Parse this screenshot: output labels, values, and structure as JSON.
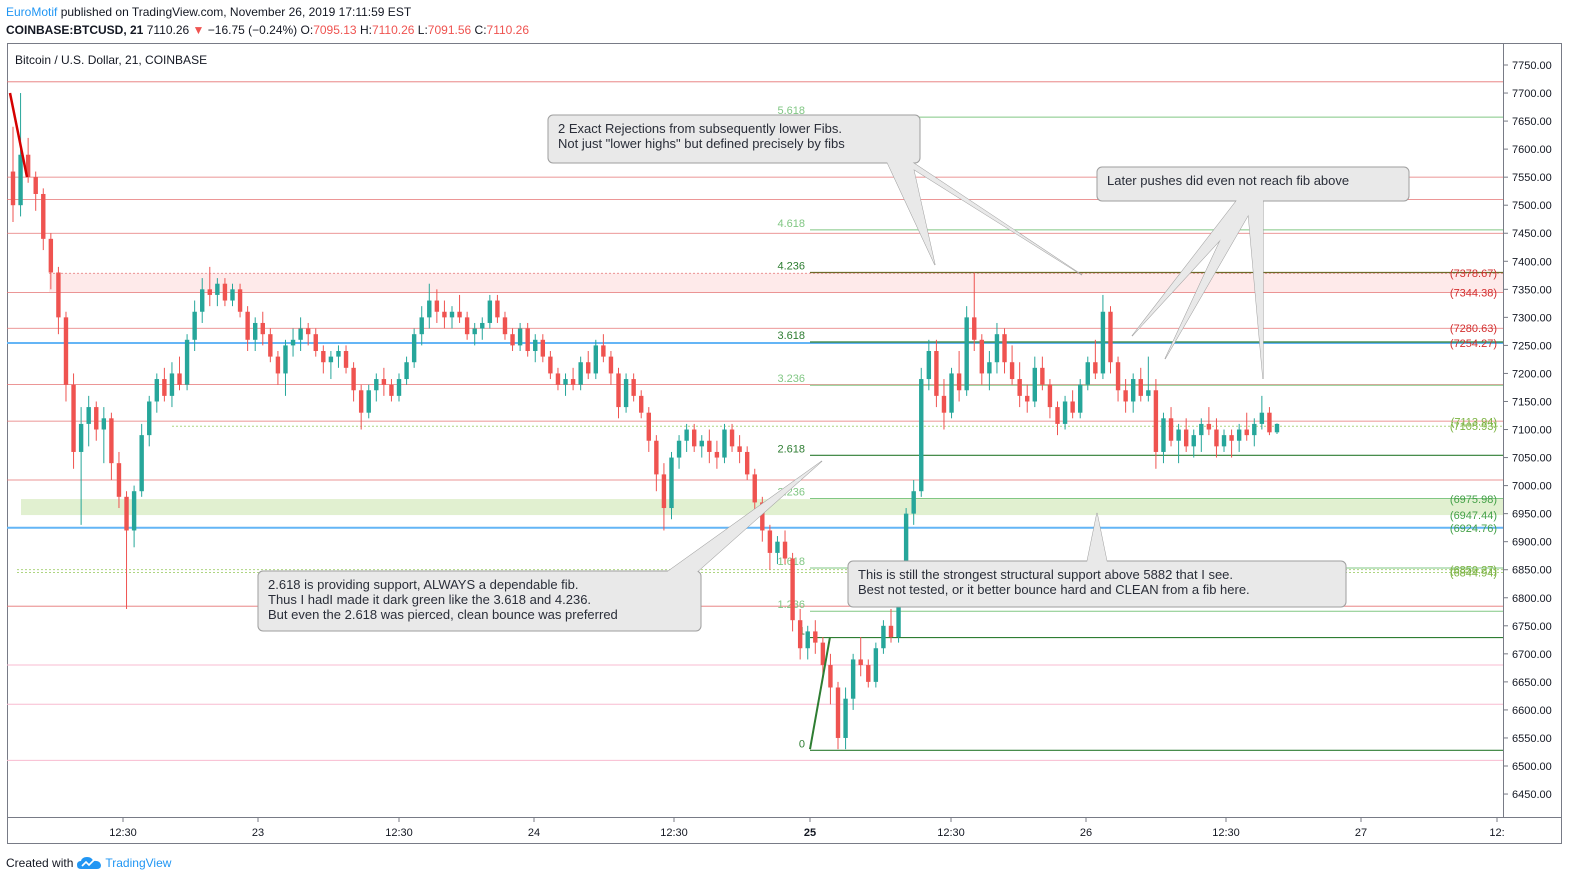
{
  "header": {
    "publisher": "EuroMotif",
    "published_text": "published on TradingView.com, November 26, 2019 17:11:59 EST",
    "symbol": "COINBASE:BTCUSD, 21",
    "last": "7110.26",
    "change": "−16.75 (−0.24%)",
    "o_label": "O:",
    "o_val": "7095.13",
    "h_label": "H:",
    "h_val": "7110.26",
    "l_label": "L:",
    "l_val": "7091.56",
    "c_label": "C:",
    "c_val": "7110.26"
  },
  "footer": {
    "created_with": "Created with",
    "brand": "TradingView"
  },
  "colors": {
    "up": "#26a69a",
    "down": "#ef5350",
    "fib_dark": "#2e7d32",
    "fib_light": "#81c784",
    "red_line": "#e57373",
    "pink_line": "#f8bbd0",
    "blue_line": "#64b5f6"
  },
  "chart_data": {
    "type": "candlestick",
    "title": "Bitcoin / U.S. Dollar, 21, COINBASE",
    "ylim": [
      6440,
      7820
    ],
    "y_ticks": [
      "7750.00",
      "7700.00",
      "7650.00",
      "7600.00",
      "7550.00",
      "7500.00",
      "7450.00",
      "7400.00",
      "7350.00",
      "7300.00",
      "7250.00",
      "7200.00",
      "7150.00",
      "7100.00",
      "7050.00",
      "7000.00",
      "6950.00",
      "6900.00",
      "6850.00",
      "6800.00",
      "6750.00",
      "6700.00",
      "6650.00",
      "6600.00",
      "6550.00",
      "6500.00",
      "6450.00"
    ],
    "x_ticks": [
      "12:30",
      "23",
      "12:30",
      "24",
      "12:30",
      "25",
      "12:30",
      "26",
      "12:30",
      "27",
      "12:"
    ],
    "fib_levels": [
      {
        "label": "5.618",
        "price": 7657,
        "style": "light"
      },
      {
        "label": "4.618",
        "price": 7456,
        "style": "light"
      },
      {
        "label": "4.236",
        "price": 7380,
        "style": "dark"
      },
      {
        "label": "3.618",
        "price": 7256,
        "style": "dark"
      },
      {
        "label": "3.236",
        "price": 7179,
        "style": "light"
      },
      {
        "label": "2.618",
        "price": 7054,
        "style": "dark"
      },
      {
        "label": "2.236",
        "price": 6977,
        "style": "light"
      },
      {
        "label": "1.618",
        "price": 6853,
        "style": "light"
      },
      {
        "label": "1.236",
        "price": 6776,
        "style": "light"
      },
      {
        "label": "1",
        "price": 6729,
        "style": "dark"
      },
      {
        "label": "0",
        "price": 6528,
        "style": "dark"
      }
    ],
    "price_labels": [
      {
        "text": "(7378.67)",
        "price": 7378.67,
        "color": "#d32f2f"
      },
      {
        "text": "(7344.38)",
        "price": 7344.38,
        "color": "#d32f2f"
      },
      {
        "text": "(7280.63)",
        "price": 7280.63,
        "color": "#d32f2f"
      },
      {
        "text": "(7254.27)",
        "price": 7254.27,
        "color": "#d32f2f"
      },
      {
        "text": "(7113.94)",
        "price": 7113.94,
        "color": "#7cb342"
      },
      {
        "text": "(7105.93)",
        "price": 7105.93,
        "color": "#7cb342"
      },
      {
        "text": "(6975.98)",
        "price": 6975.98,
        "color": "#43a047"
      },
      {
        "text": "(6947.44)",
        "price": 6947.44,
        "color": "#43a047"
      },
      {
        "text": "(6924.76)",
        "price": 6924.76,
        "color": "#43a047"
      },
      {
        "text": "(6850.27)",
        "price": 6850.27,
        "color": "#7cb342"
      },
      {
        "text": "(6844.94)",
        "price": 6844.94,
        "color": "#7cb342"
      }
    ],
    "candles_ohlc": [
      [
        7560,
        7640,
        7470,
        7500
      ],
      [
        7500,
        7700,
        7480,
        7590
      ],
      [
        7590,
        7620,
        7540,
        7550
      ],
      [
        7550,
        7560,
        7490,
        7520
      ],
      [
        7520,
        7530,
        7420,
        7440
      ],
      [
        7440,
        7450,
        7350,
        7380
      ],
      [
        7380,
        7390,
        7270,
        7300
      ],
      [
        7300,
        7310,
        7150,
        7180
      ],
      [
        7180,
        7200,
        7030,
        7060
      ],
      [
        7060,
        7140,
        6930,
        7110
      ],
      [
        7110,
        7160,
        7070,
        7140
      ],
      [
        7140,
        7150,
        7080,
        7100
      ],
      [
        7100,
        7140,
        7040,
        7120
      ],
      [
        7120,
        7130,
        7010,
        7040
      ],
      [
        7040,
        7060,
        6960,
        6980
      ],
      [
        6980,
        6990,
        6780,
        6920
      ],
      [
        6920,
        7000,
        6890,
        6990
      ],
      [
        6990,
        7110,
        6980,
        7090
      ],
      [
        7090,
        7160,
        7070,
        7150
      ],
      [
        7150,
        7200,
        7130,
        7190
      ],
      [
        7190,
        7210,
        7150,
        7160
      ],
      [
        7160,
        7220,
        7140,
        7200
      ],
      [
        7200,
        7230,
        7170,
        7180
      ],
      [
        7180,
        7270,
        7170,
        7260
      ],
      [
        7260,
        7330,
        7240,
        7310
      ],
      [
        7310,
        7370,
        7290,
        7350
      ],
      [
        7350,
        7390,
        7320,
        7340
      ],
      [
        7340,
        7370,
        7320,
        7360
      ],
      [
        7360,
        7370,
        7320,
        7330
      ],
      [
        7330,
        7360,
        7320,
        7350
      ],
      [
        7350,
        7360,
        7300,
        7310
      ],
      [
        7310,
        7320,
        7240,
        7260
      ],
      [
        7260,
        7300,
        7240,
        7290
      ],
      [
        7290,
        7310,
        7250,
        7270
      ],
      [
        7270,
        7280,
        7220,
        7230
      ],
      [
        7230,
        7240,
        7180,
        7200
      ],
      [
        7200,
        7260,
        7160,
        7250
      ],
      [
        7250,
        7280,
        7230,
        7260
      ],
      [
        7260,
        7300,
        7240,
        7280
      ],
      [
        7280,
        7290,
        7250,
        7270
      ],
      [
        7270,
        7280,
        7230,
        7240
      ],
      [
        7240,
        7250,
        7200,
        7220
      ],
      [
        7220,
        7240,
        7190,
        7230
      ],
      [
        7230,
        7250,
        7210,
        7240
      ],
      [
        7240,
        7250,
        7200,
        7210
      ],
      [
        7210,
        7220,
        7150,
        7170
      ],
      [
        7170,
        7180,
        7100,
        7130
      ],
      [
        7130,
        7180,
        7120,
        7170
      ],
      [
        7170,
        7200,
        7150,
        7190
      ],
      [
        7190,
        7210,
        7160,
        7180
      ],
      [
        7180,
        7190,
        7150,
        7160
      ],
      [
        7160,
        7200,
        7150,
        7190
      ],
      [
        7190,
        7230,
        7180,
        7220
      ],
      [
        7220,
        7280,
        7210,
        7270
      ],
      [
        7270,
        7320,
        7250,
        7300
      ],
      [
        7300,
        7360,
        7280,
        7330
      ],
      [
        7330,
        7350,
        7290,
        7310
      ],
      [
        7310,
        7330,
        7280,
        7300
      ],
      [
        7300,
        7320,
        7280,
        7310
      ],
      [
        7310,
        7340,
        7290,
        7300
      ],
      [
        7300,
        7310,
        7260,
        7270
      ],
      [
        7270,
        7290,
        7250,
        7280
      ],
      [
        7280,
        7300,
        7260,
        7290
      ],
      [
        7290,
        7340,
        7280,
        7330
      ],
      [
        7330,
        7340,
        7290,
        7300
      ],
      [
        7300,
        7310,
        7260,
        7270
      ],
      [
        7270,
        7280,
        7240,
        7250
      ],
      [
        7250,
        7290,
        7240,
        7280
      ],
      [
        7280,
        7290,
        7230,
        7240
      ],
      [
        7240,
        7270,
        7220,
        7260
      ],
      [
        7260,
        7270,
        7220,
        7230
      ],
      [
        7230,
        7240,
        7190,
        7200
      ],
      [
        7200,
        7210,
        7170,
        7180
      ],
      [
        7180,
        7200,
        7160,
        7190
      ],
      [
        7190,
        7210,
        7170,
        7180
      ],
      [
        7180,
        7230,
        7170,
        7220
      ],
      [
        7220,
        7240,
        7190,
        7200
      ],
      [
        7200,
        7260,
        7190,
        7250
      ],
      [
        7250,
        7270,
        7220,
        7230
      ],
      [
        7230,
        7240,
        7180,
        7200
      ],
      [
        7200,
        7210,
        7120,
        7140
      ],
      [
        7140,
        7200,
        7130,
        7190
      ],
      [
        7190,
        7200,
        7150,
        7160
      ],
      [
        7160,
        7170,
        7120,
        7130
      ],
      [
        7130,
        7140,
        7060,
        7080
      ],
      [
        7080,
        7090,
        6990,
        7020
      ],
      [
        7020,
        7040,
        6920,
        6960
      ],
      [
        6960,
        7060,
        6940,
        7050
      ],
      [
        7050,
        7090,
        7030,
        7080
      ],
      [
        7080,
        7110,
        7060,
        7100
      ],
      [
        7100,
        7110,
        7060,
        7070
      ],
      [
        7070,
        7090,
        7050,
        7080
      ],
      [
        7080,
        7100,
        7040,
        7060
      ],
      [
        7060,
        7080,
        7030,
        7050
      ],
      [
        7050,
        7110,
        7040,
        7100
      ],
      [
        7100,
        7110,
        7060,
        7070
      ],
      [
        7070,
        7090,
        7040,
        7060
      ],
      [
        7060,
        7070,
        7010,
        7020
      ],
      [
        7020,
        7030,
        6950,
        6970
      ],
      [
        6970,
        6980,
        6900,
        6920
      ],
      [
        6920,
        6930,
        6850,
        6880
      ],
      [
        6880,
        6910,
        6860,
        6900
      ],
      [
        6900,
        6920,
        6860,
        6870
      ],
      [
        6870,
        6880,
        6740,
        6760
      ],
      [
        6760,
        6780,
        6690,
        6710
      ],
      [
        6710,
        6750,
        6690,
        6740
      ],
      [
        6740,
        6760,
        6700,
        6720
      ],
      [
        6720,
        6730,
        6660,
        6680
      ],
      [
        6680,
        6700,
        6610,
        6640
      ],
      [
        6640,
        6650,
        6530,
        6550
      ],
      [
        6550,
        6640,
        6530,
        6620
      ],
      [
        6620,
        6700,
        6600,
        6690
      ],
      [
        6690,
        6730,
        6660,
        6680
      ],
      [
        6680,
        6690,
        6640,
        6650
      ],
      [
        6650,
        6720,
        6640,
        6710
      ],
      [
        6710,
        6760,
        6700,
        6750
      ],
      [
        6750,
        6780,
        6720,
        6730
      ],
      [
        6730,
        6850,
        6720,
        6840
      ],
      [
        6840,
        6960,
        6820,
        6950
      ],
      [
        6950,
        7010,
        6930,
        6990
      ],
      [
        6990,
        7210,
        6980,
        7190
      ],
      [
        7190,
        7260,
        7170,
        7240
      ],
      [
        7240,
        7260,
        7140,
        7160
      ],
      [
        7160,
        7190,
        7100,
        7130
      ],
      [
        7130,
        7210,
        7120,
        7200
      ],
      [
        7200,
        7240,
        7150,
        7170
      ],
      [
        7170,
        7320,
        7160,
        7300
      ],
      [
        7300,
        7380,
        7240,
        7260
      ],
      [
        7260,
        7270,
        7180,
        7200
      ],
      [
        7200,
        7240,
        7170,
        7220
      ],
      [
        7220,
        7290,
        7200,
        7270
      ],
      [
        7270,
        7280,
        7200,
        7220
      ],
      [
        7220,
        7250,
        7180,
        7190
      ],
      [
        7190,
        7220,
        7140,
        7160
      ],
      [
        7160,
        7180,
        7130,
        7150
      ],
      [
        7150,
        7230,
        7140,
        7210
      ],
      [
        7210,
        7230,
        7170,
        7180
      ],
      [
        7180,
        7190,
        7120,
        7140
      ],
      [
        7140,
        7150,
        7090,
        7110
      ],
      [
        7110,
        7160,
        7100,
        7150
      ],
      [
        7150,
        7170,
        7120,
        7130
      ],
      [
        7130,
        7190,
        7120,
        7180
      ],
      [
        7180,
        7230,
        7170,
        7220
      ],
      [
        7220,
        7260,
        7190,
        7200
      ],
      [
        7200,
        7340,
        7190,
        7310
      ],
      [
        7310,
        7320,
        7200,
        7220
      ],
      [
        7220,
        7230,
        7150,
        7170
      ],
      [
        7170,
        7190,
        7130,
        7150
      ],
      [
        7150,
        7200,
        7130,
        7190
      ],
      [
        7190,
        7210,
        7150,
        7160
      ],
      [
        7160,
        7230,
        7150,
        7170
      ],
      [
        7170,
        7190,
        7030,
        7060
      ],
      [
        7060,
        7130,
        7040,
        7120
      ],
      [
        7120,
        7140,
        7070,
        7080
      ],
      [
        7080,
        7110,
        7040,
        7100
      ],
      [
        7100,
        7120,
        7060,
        7070
      ],
      [
        7070,
        7100,
        7050,
        7090
      ],
      [
        7090,
        7120,
        7060,
        7110
      ],
      [
        7110,
        7140,
        7090,
        7100
      ],
      [
        7100,
        7120,
        7050,
        7070
      ],
      [
        7070,
        7100,
        7060,
        7090
      ],
      [
        7090,
        7100,
        7050,
        7080
      ],
      [
        7080,
        7110,
        7060,
        7100
      ],
      [
        7100,
        7130,
        7080,
        7090
      ],
      [
        7090,
        7120,
        7070,
        7110
      ],
      [
        7110,
        7160,
        7100,
        7130
      ],
      [
        7130,
        7140,
        7090,
        7095
      ],
      [
        7095,
        7111,
        7092,
        7110
      ]
    ]
  },
  "annotations": {
    "callout_rejections": [
      "2 Exact Rejections from subsequently lower Fibs.",
      "Not just \"lower highs\" but defined precisely by fibs"
    ],
    "callout_pushes": "Later pushes did even not reach fib above",
    "callout_support": [
      "2.618 is providing support, ALWAYS a dependable fib.",
      "Thus I hadI made it dark green like the 3.618 and 4.236.",
      "But even the 2.618 was pierced, clean bounce was preferred"
    ],
    "callout_structural": [
      "This is still the strongest structural support above 5882 that I see.",
      "Best not tested, or it better bounce hard and CLEAN from a fib here."
    ]
  }
}
